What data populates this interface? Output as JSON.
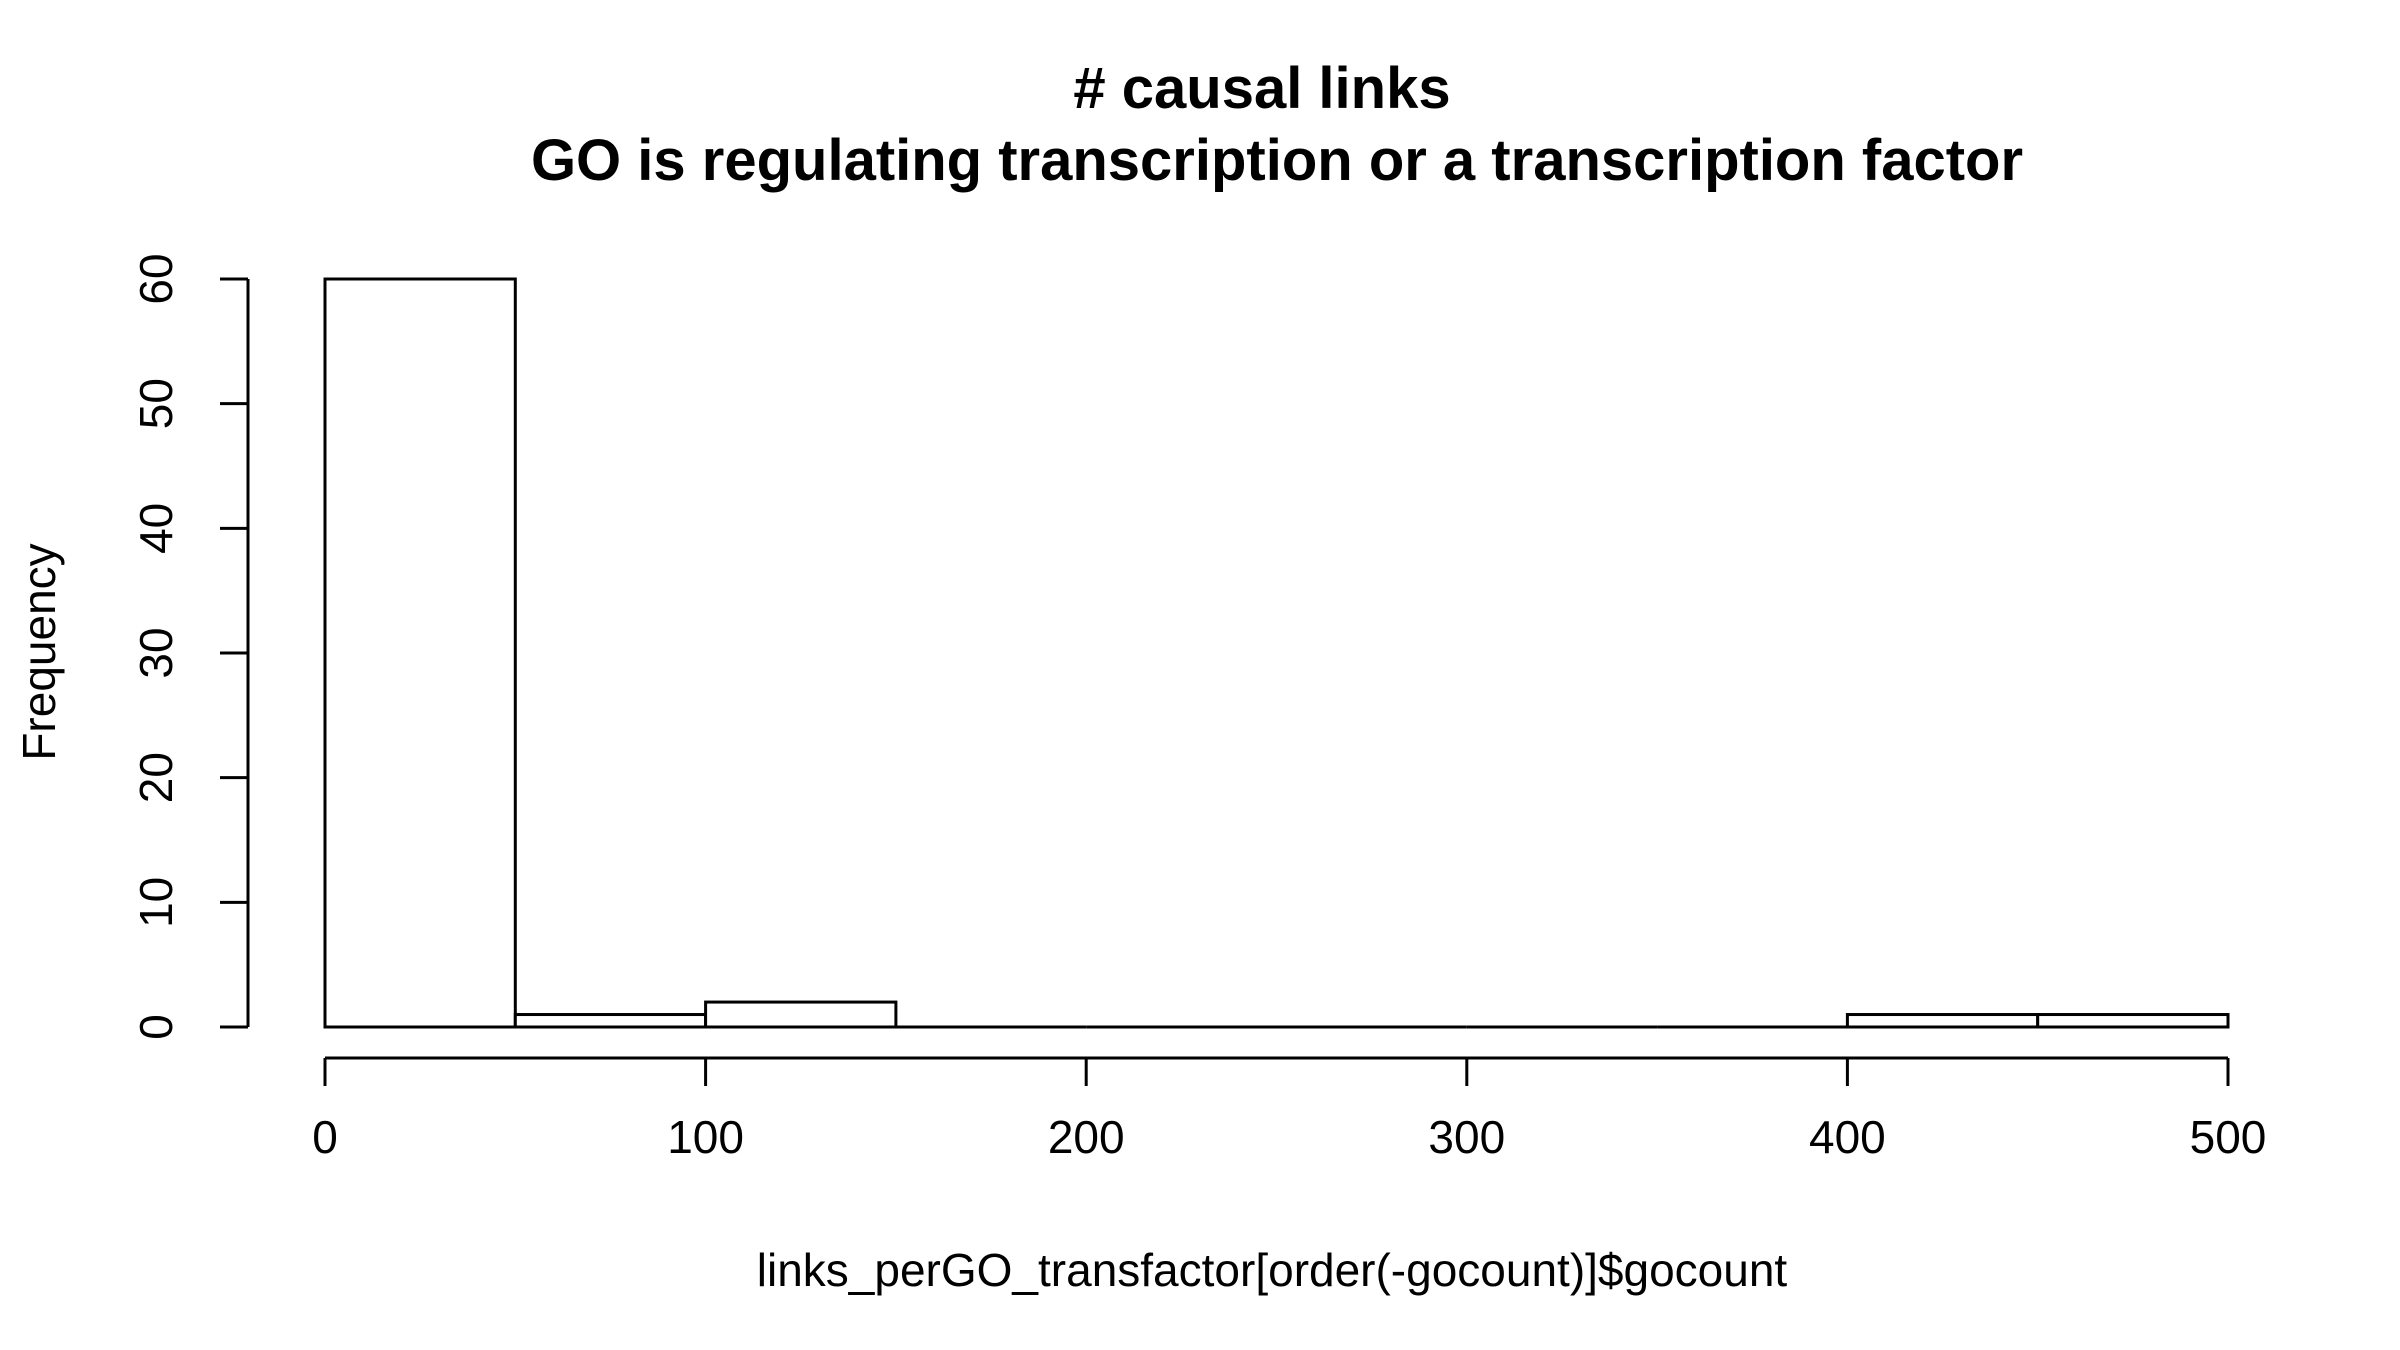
{
  "chart_data": {
    "type": "bar",
    "title": "# causal links",
    "subtitle": "GO is regulating transcription or a transcription factor",
    "xlabel": "links_perGO_transfactor[order(-gocount)]$gocount",
    "ylabel": "Frequency",
    "bins": [
      [
        0,
        50
      ],
      [
        50,
        100
      ],
      [
        100,
        150
      ],
      [
        150,
        200
      ],
      [
        200,
        250
      ],
      [
        250,
        300
      ],
      [
        300,
        350
      ],
      [
        350,
        400
      ],
      [
        400,
        450
      ],
      [
        450,
        500
      ]
    ],
    "values": [
      60,
      1,
      2,
      0,
      0,
      0,
      0,
      0,
      1,
      1
    ],
    "xlim": [
      0,
      500
    ],
    "ylim": [
      0,
      60
    ],
    "x_ticks": [
      0,
      100,
      200,
      300,
      400,
      500
    ],
    "y_ticks": [
      0,
      10,
      20,
      30,
      40,
      50,
      60
    ],
    "grid": false
  }
}
